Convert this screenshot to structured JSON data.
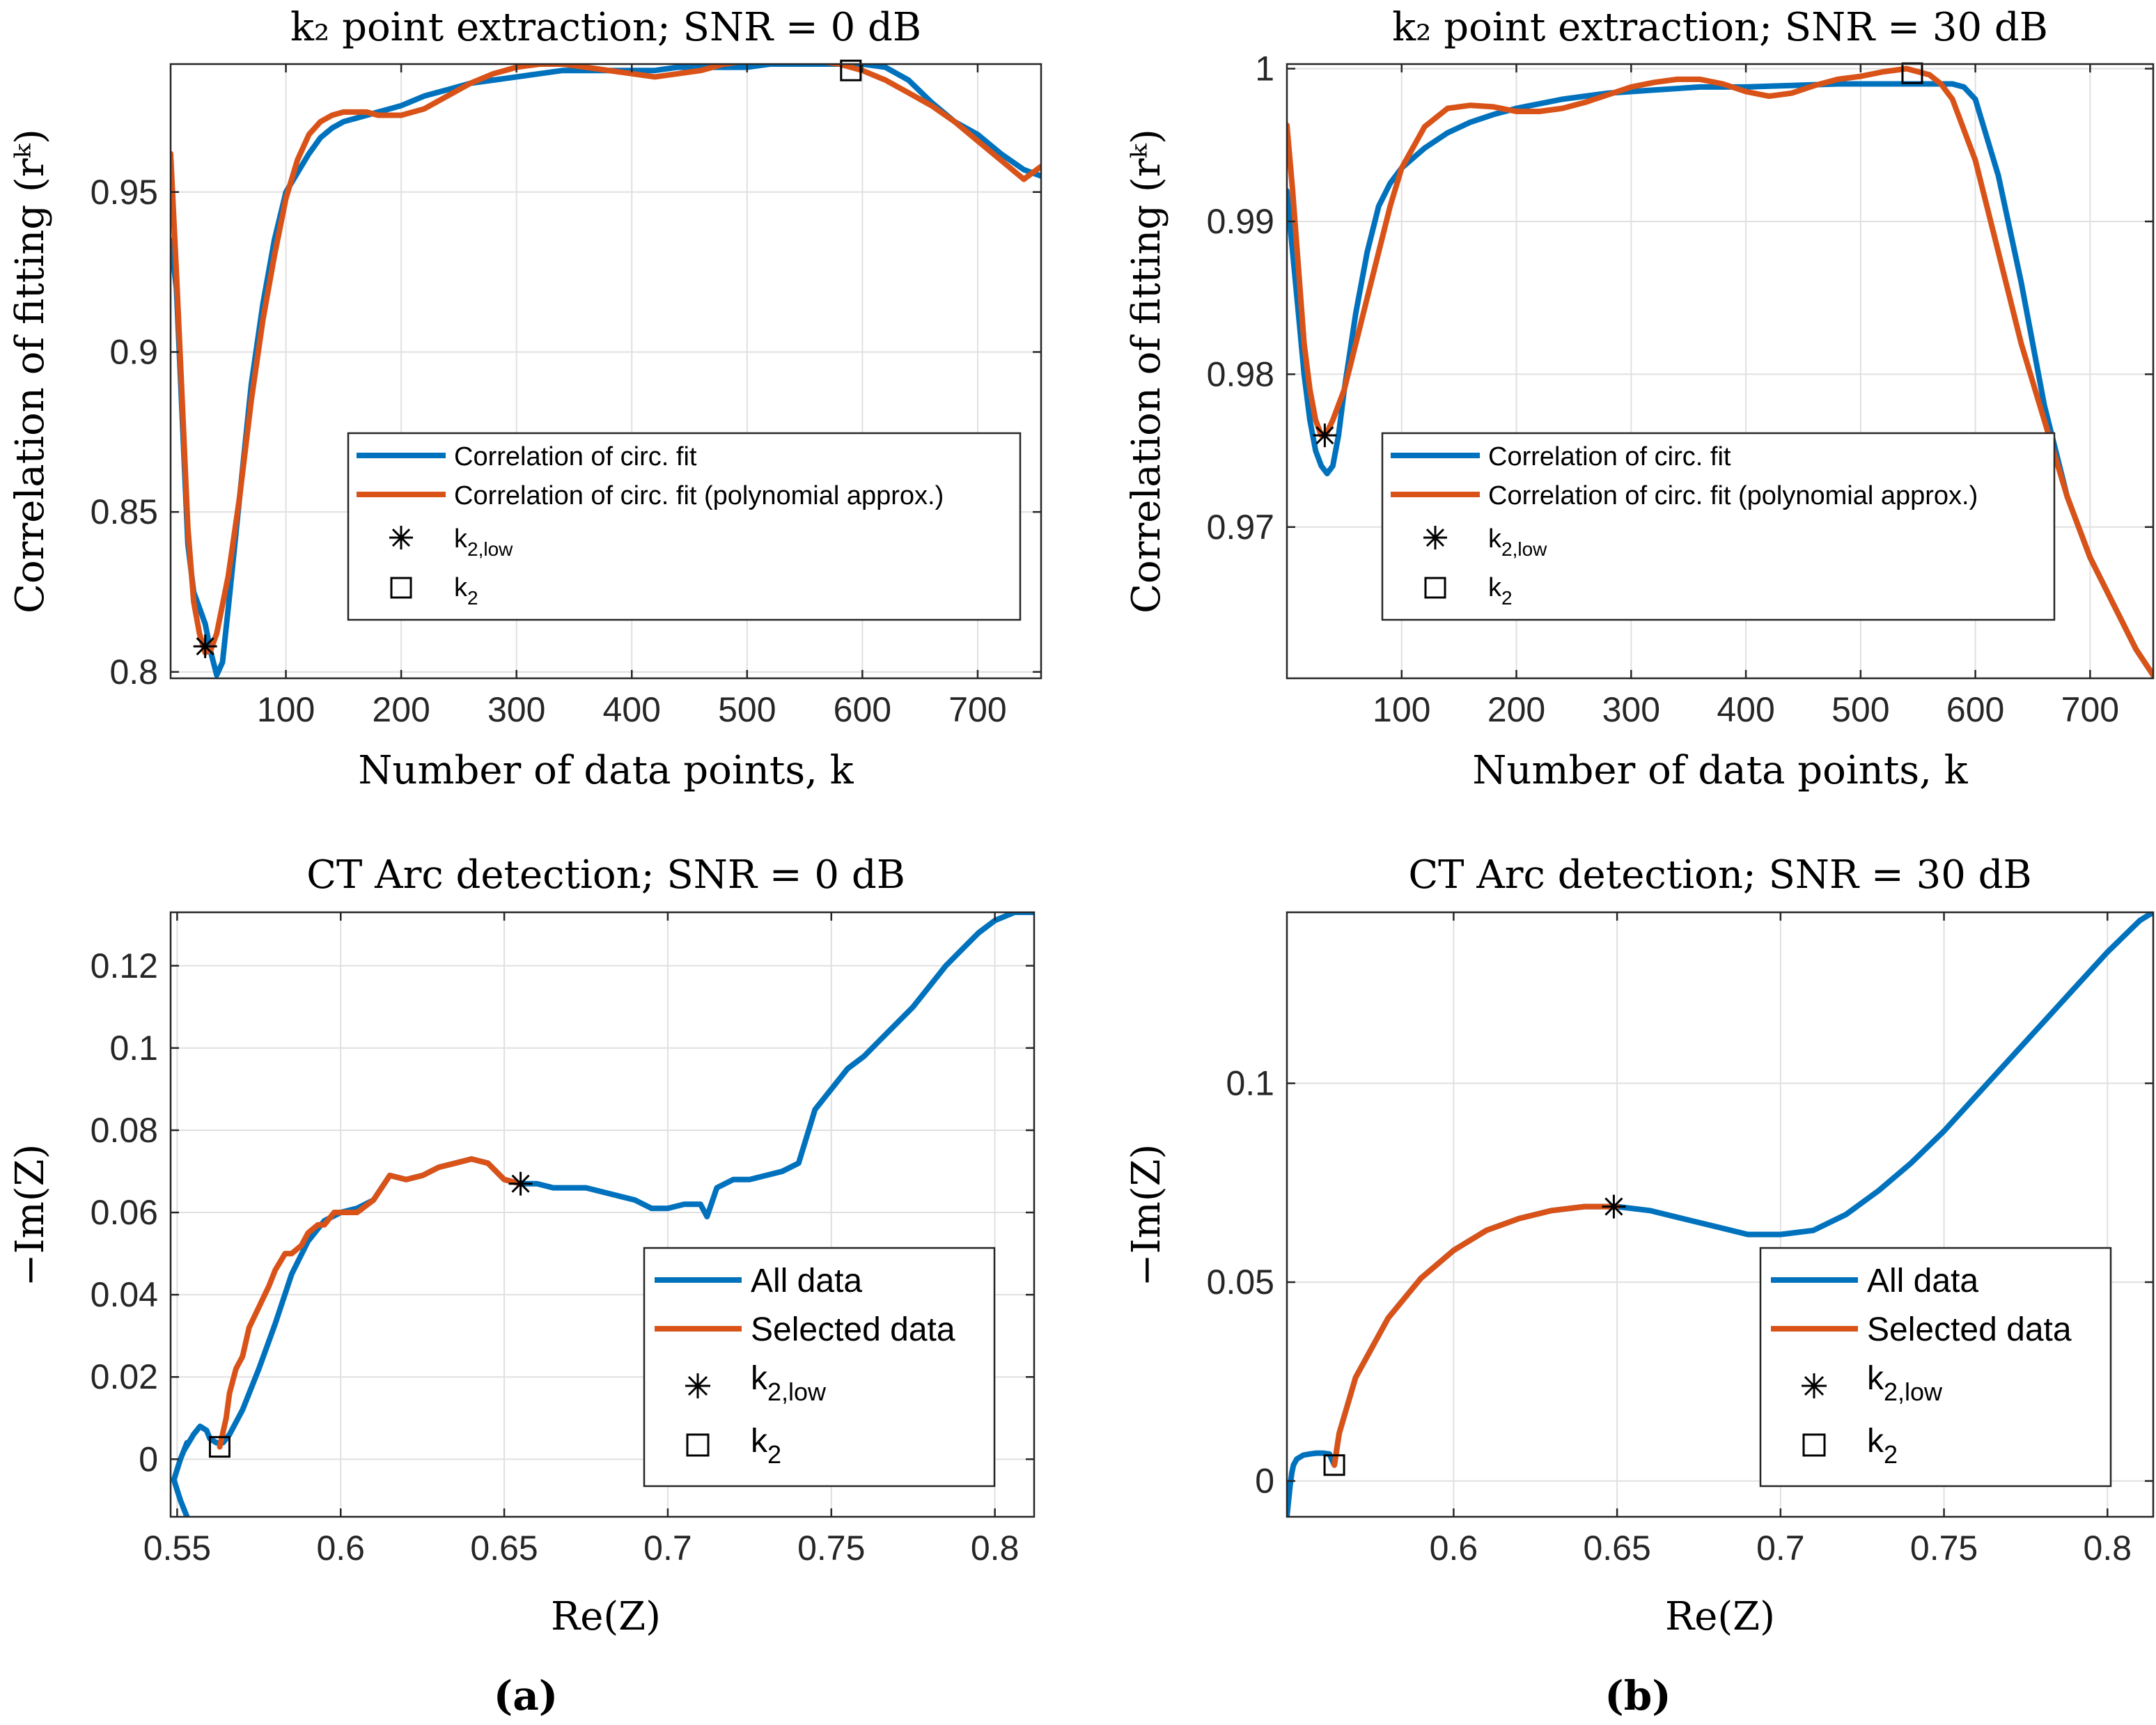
{
  "colors": {
    "all_data": "#0072bd",
    "selected": "#d95319",
    "marker": "#000000",
    "grid": "#e0e0e0"
  },
  "chart_data": [
    {
      "type": "line",
      "title": "k₂ point extraction; SNR = 0 dB",
      "xlabel": "Number of data points, k",
      "ylabel": "Correlation of fitting (rᵏ)",
      "xlim": [
        0,
        755
      ],
      "ylim": [
        0.798,
        0.99
      ],
      "xticks": [
        100,
        200,
        300,
        400,
        500,
        600,
        700
      ],
      "yticks": [
        0.8,
        0.85,
        0.9,
        0.95
      ],
      "legend_position": "center-right",
      "legend": [
        "Correlation of circ. fit",
        "Correlation of circ. fit (polynomial approx.)",
        "k2,low",
        "k2"
      ],
      "series": [
        {
          "name": "Correlation of circ. fit",
          "x": [
            0,
            5,
            10,
            15,
            20,
            25,
            30,
            35,
            40,
            45,
            50,
            60,
            70,
            80,
            90,
            100,
            110,
            120,
            130,
            140,
            150,
            160,
            170,
            180,
            190,
            200,
            220,
            240,
            260,
            280,
            300,
            320,
            340,
            360,
            380,
            400,
            420,
            440,
            460,
            480,
            500,
            520,
            540,
            560,
            580,
            600,
            620,
            640,
            660,
            680,
            700,
            720,
            740,
            755
          ],
          "y": [
            0.935,
            0.92,
            0.88,
            0.84,
            0.825,
            0.82,
            0.815,
            0.806,
            0.799,
            0.803,
            0.82,
            0.855,
            0.89,
            0.915,
            0.935,
            0.95,
            0.956,
            0.962,
            0.967,
            0.97,
            0.972,
            0.973,
            0.974,
            0.975,
            0.976,
            0.977,
            0.98,
            0.982,
            0.984,
            0.985,
            0.986,
            0.987,
            0.988,
            0.988,
            0.988,
            0.988,
            0.988,
            0.989,
            0.989,
            0.989,
            0.989,
            0.99,
            0.99,
            0.99,
            0.99,
            0.99,
            0.989,
            0.985,
            0.978,
            0.972,
            0.968,
            0.962,
            0.957,
            0.955
          ]
        },
        {
          "name": "Correlation of circ. fit (polynomial approx.)",
          "x": [
            0,
            5,
            10,
            15,
            20,
            25,
            30,
            35,
            40,
            50,
            60,
            70,
            80,
            90,
            100,
            110,
            120,
            130,
            140,
            150,
            160,
            170,
            180,
            190,
            200,
            220,
            240,
            260,
            280,
            300,
            320,
            340,
            360,
            380,
            400,
            420,
            440,
            460,
            480,
            500,
            520,
            540,
            560,
            580,
            600,
            620,
            640,
            660,
            680,
            700,
            720,
            740,
            755
          ],
          "y": [
            0.962,
            0.925,
            0.885,
            0.845,
            0.822,
            0.812,
            0.806,
            0.807,
            0.812,
            0.83,
            0.855,
            0.885,
            0.91,
            0.93,
            0.948,
            0.96,
            0.968,
            0.972,
            0.974,
            0.975,
            0.975,
            0.975,
            0.974,
            0.974,
            0.974,
            0.976,
            0.98,
            0.984,
            0.987,
            0.989,
            0.99,
            0.99,
            0.989,
            0.988,
            0.987,
            0.986,
            0.987,
            0.988,
            0.99,
            0.991,
            0.992,
            0.992,
            0.991,
            0.99,
            0.988,
            0.985,
            0.981,
            0.977,
            0.972,
            0.966,
            0.96,
            0.954,
            0.958
          ]
        }
      ],
      "markers": {
        "k2_low": [
          30,
          0.808
        ],
        "k2": [
          590,
          0.988
        ]
      }
    },
    {
      "type": "line",
      "title": "k₂ point extraction; SNR = 30 dB",
      "xlabel": "Number of data points, k",
      "ylabel": "Correlation of fitting (rᵏ)",
      "xlim": [
        0,
        755
      ],
      "ylim": [
        0.9601,
        1.0003
      ],
      "xticks": [
        100,
        200,
        300,
        400,
        500,
        600,
        700
      ],
      "yticks": [
        0.97,
        0.98,
        0.99,
        1
      ],
      "legend_position": "center-right",
      "legend": [
        "Correlation of circ. fit",
        "Correlation of circ. fit (polynomial approx.)",
        "k2,low",
        "k2"
      ],
      "series": [
        {
          "name": "Correlation of circ. fit",
          "x": [
            0,
            5,
            10,
            15,
            20,
            25,
            30,
            35,
            40,
            45,
            50,
            60,
            70,
            80,
            90,
            100,
            120,
            140,
            160,
            180,
            200,
            240,
            280,
            320,
            360,
            400,
            440,
            480,
            520,
            560,
            580,
            590,
            600,
            620,
            640,
            660,
            680,
            700,
            720,
            740,
            755
          ],
          "y": [
            0.992,
            0.988,
            0.984,
            0.98,
            0.977,
            0.975,
            0.974,
            0.9735,
            0.974,
            0.976,
            0.979,
            0.984,
            0.988,
            0.991,
            0.9925,
            0.9935,
            0.9948,
            0.9958,
            0.9965,
            0.997,
            0.9974,
            0.998,
            0.9984,
            0.9986,
            0.9988,
            0.9988,
            0.9989,
            0.999,
            0.999,
            0.999,
            0.999,
            0.9988,
            0.998,
            0.993,
            0.986,
            0.978,
            0.972,
            0.968,
            0.965,
            0.962,
            0.9603
          ]
        },
        {
          "name": "Correlation of circ. fit (polynomial approx.)",
          "x": [
            0,
            5,
            10,
            15,
            20,
            25,
            30,
            35,
            40,
            50,
            60,
            70,
            80,
            90,
            100,
            120,
            140,
            160,
            180,
            200,
            220,
            240,
            260,
            280,
            300,
            320,
            340,
            360,
            380,
            400,
            420,
            440,
            460,
            480,
            500,
            520,
            540,
            560,
            570,
            580,
            600,
            620,
            640,
            660,
            680,
            700,
            720,
            740,
            755
          ],
          "y": [
            0.9963,
            0.992,
            0.987,
            0.982,
            0.979,
            0.977,
            0.976,
            0.9762,
            0.977,
            0.979,
            0.982,
            0.985,
            0.988,
            0.991,
            0.9935,
            0.9962,
            0.9974,
            0.9976,
            0.9975,
            0.9972,
            0.9972,
            0.9974,
            0.9978,
            0.9983,
            0.9988,
            0.9991,
            0.9993,
            0.9993,
            0.999,
            0.9985,
            0.9982,
            0.9984,
            0.9989,
            0.9993,
            0.9995,
            0.9998,
            1.0,
            0.9996,
            0.999,
            0.998,
            0.994,
            0.988,
            0.982,
            0.977,
            0.972,
            0.968,
            0.965,
            0.962,
            0.9603
          ]
        }
      ],
      "markers": {
        "k2_low": [
          33,
          0.976
        ],
        "k2": [
          545,
          0.9997
        ]
      }
    },
    {
      "type": "line",
      "title": "CT Arc detection; SNR = 0 dB",
      "xlabel": "Re(Z)",
      "ylabel": "−Im(Z)",
      "xlim": [
        0.548,
        0.812
      ],
      "ylim": [
        -0.014,
        0.133
      ],
      "xticks": [
        0.55,
        0.6,
        0.65,
        0.7,
        0.75,
        0.8
      ],
      "xticklabels": [
        "0.55",
        "0.6",
        "0.65",
        "0.7",
        "0.75",
        "0.8"
      ],
      "yticks": [
        0,
        0.02,
        0.04,
        0.06,
        0.08,
        0.1,
        0.12
      ],
      "yticklabels": [
        "0",
        "0.02",
        "0.04",
        "0.06",
        "0.08",
        "0.1",
        "0.12"
      ],
      "legend_position": "lower-right",
      "legend": [
        "All data",
        "Selected data",
        "k2,low",
        "k2"
      ],
      "series": [
        {
          "name": "All data",
          "x": [
            0.553,
            0.551,
            0.549,
            0.551,
            0.553,
            0.552,
            0.555,
            0.557,
            0.559,
            0.56,
            0.562,
            0.564,
            0.566,
            0.57,
            0.575,
            0.58,
            0.585,
            0.59,
            0.595,
            0.6,
            0.605,
            0.61,
            0.615,
            0.62,
            0.625,
            0.63,
            0.635,
            0.64,
            0.645,
            0.65,
            0.655,
            0.66,
            0.665,
            0.67,
            0.675,
            0.68,
            0.685,
            0.69,
            0.695,
            0.7,
            0.705,
            0.71,
            0.712,
            0.715,
            0.72,
            0.725,
            0.73,
            0.735,
            0.74,
            0.745,
            0.75,
            0.755,
            0.76,
            0.765,
            0.77,
            0.775,
            0.78,
            0.785,
            0.79,
            0.795,
            0.8,
            0.806,
            0.812
          ],
          "y": [
            -0.014,
            -0.01,
            -0.005,
            0.0,
            0.004,
            0.002,
            0.006,
            0.008,
            0.007,
            0.005,
            0.004,
            0.004,
            0.006,
            0.012,
            0.022,
            0.033,
            0.045,
            0.053,
            0.058,
            0.06,
            0.061,
            0.063,
            0.069,
            0.068,
            0.069,
            0.071,
            0.072,
            0.073,
            0.072,
            0.068,
            0.067,
            0.067,
            0.066,
            0.066,
            0.066,
            0.065,
            0.064,
            0.063,
            0.061,
            0.061,
            0.062,
            0.062,
            0.059,
            0.066,
            0.068,
            0.068,
            0.069,
            0.07,
            0.072,
            0.085,
            0.09,
            0.095,
            0.098,
            0.102,
            0.106,
            0.11,
            0.115,
            0.12,
            0.124,
            0.128,
            0.131,
            0.133,
            0.133
          ]
        },
        {
          "name": "Selected data",
          "x": [
            0.563,
            0.565,
            0.566,
            0.568,
            0.57,
            0.572,
            0.575,
            0.578,
            0.58,
            0.583,
            0.585,
            0.588,
            0.59,
            0.593,
            0.595,
            0.598,
            0.6,
            0.605,
            0.61,
            0.615,
            0.62,
            0.625,
            0.63,
            0.635,
            0.64,
            0.645,
            0.65,
            0.655
          ],
          "y": [
            0.003,
            0.01,
            0.016,
            0.022,
            0.025,
            0.032,
            0.037,
            0.042,
            0.046,
            0.05,
            0.05,
            0.052,
            0.055,
            0.057,
            0.057,
            0.06,
            0.06,
            0.06,
            0.063,
            0.069,
            0.068,
            0.069,
            0.071,
            0.072,
            0.073,
            0.072,
            0.068,
            0.067
          ]
        }
      ],
      "markers": {
        "k2_low": [
          0.655,
          0.067
        ],
        "k2": [
          0.563,
          0.003
        ]
      }
    },
    {
      "type": "line",
      "title": "CT Arc detection; SNR = 30 dB",
      "xlabel": "Re(Z)",
      "ylabel": "−Im(Z)",
      "xlim": [
        0.549,
        0.814
      ],
      "ylim": [
        -0.009,
        0.143
      ],
      "xticks": [
        0.6,
        0.65,
        0.7,
        0.75,
        0.8
      ],
      "xticklabels": [
        "0.6",
        "0.65",
        "0.7",
        "0.75",
        "0.8"
      ],
      "yticks": [
        0,
        0.05,
        0.1
      ],
      "yticklabels": [
        "0",
        "0.05",
        "0.1"
      ],
      "legend_position": "lower-right",
      "legend": [
        "All data",
        "Selected data",
        "k2,low",
        "k2"
      ],
      "series": [
        {
          "name": "All data",
          "x": [
            0.549,
            0.5495,
            0.55,
            0.5505,
            0.551,
            0.552,
            0.554,
            0.556,
            0.558,
            0.56,
            0.562,
            0.5635,
            0.565,
            0.57,
            0.58,
            0.59,
            0.6,
            0.61,
            0.62,
            0.63,
            0.64,
            0.65,
            0.66,
            0.67,
            0.68,
            0.69,
            0.7,
            0.71,
            0.72,
            0.73,
            0.74,
            0.75,
            0.76,
            0.77,
            0.78,
            0.79,
            0.8,
            0.81,
            0.814
          ],
          "y": [
            -0.009,
            -0.005,
            -0.001,
            0.002,
            0.004,
            0.0055,
            0.0065,
            0.0068,
            0.007,
            0.007,
            0.0068,
            0.004,
            0.012,
            0.026,
            0.041,
            0.051,
            0.058,
            0.063,
            0.066,
            0.068,
            0.069,
            0.069,
            0.068,
            0.066,
            0.064,
            0.062,
            0.062,
            0.063,
            0.067,
            0.073,
            0.08,
            0.088,
            0.097,
            0.106,
            0.115,
            0.124,
            0.133,
            0.141,
            0.143
          ]
        },
        {
          "name": "Selected data",
          "x": [
            0.5635,
            0.565,
            0.57,
            0.58,
            0.59,
            0.6,
            0.61,
            0.62,
            0.63,
            0.64,
            0.65
          ],
          "y": [
            0.004,
            0.012,
            0.026,
            0.041,
            0.051,
            0.058,
            0.063,
            0.066,
            0.068,
            0.069,
            0.069
          ]
        }
      ],
      "markers": {
        "k2_low": [
          0.649,
          0.069
        ],
        "k2": [
          0.5635,
          0.004
        ]
      }
    }
  ],
  "legend_labels": {
    "corr": "Correlation of circ. fit",
    "poly": "Correlation of circ. fit (polynomial approx.)",
    "all": "All data",
    "sel": "Selected data",
    "k2": "k",
    "k2_sub": "2",
    "k2low_sub": "2,low"
  },
  "subfig_labels": [
    "(a)",
    "(b)"
  ]
}
